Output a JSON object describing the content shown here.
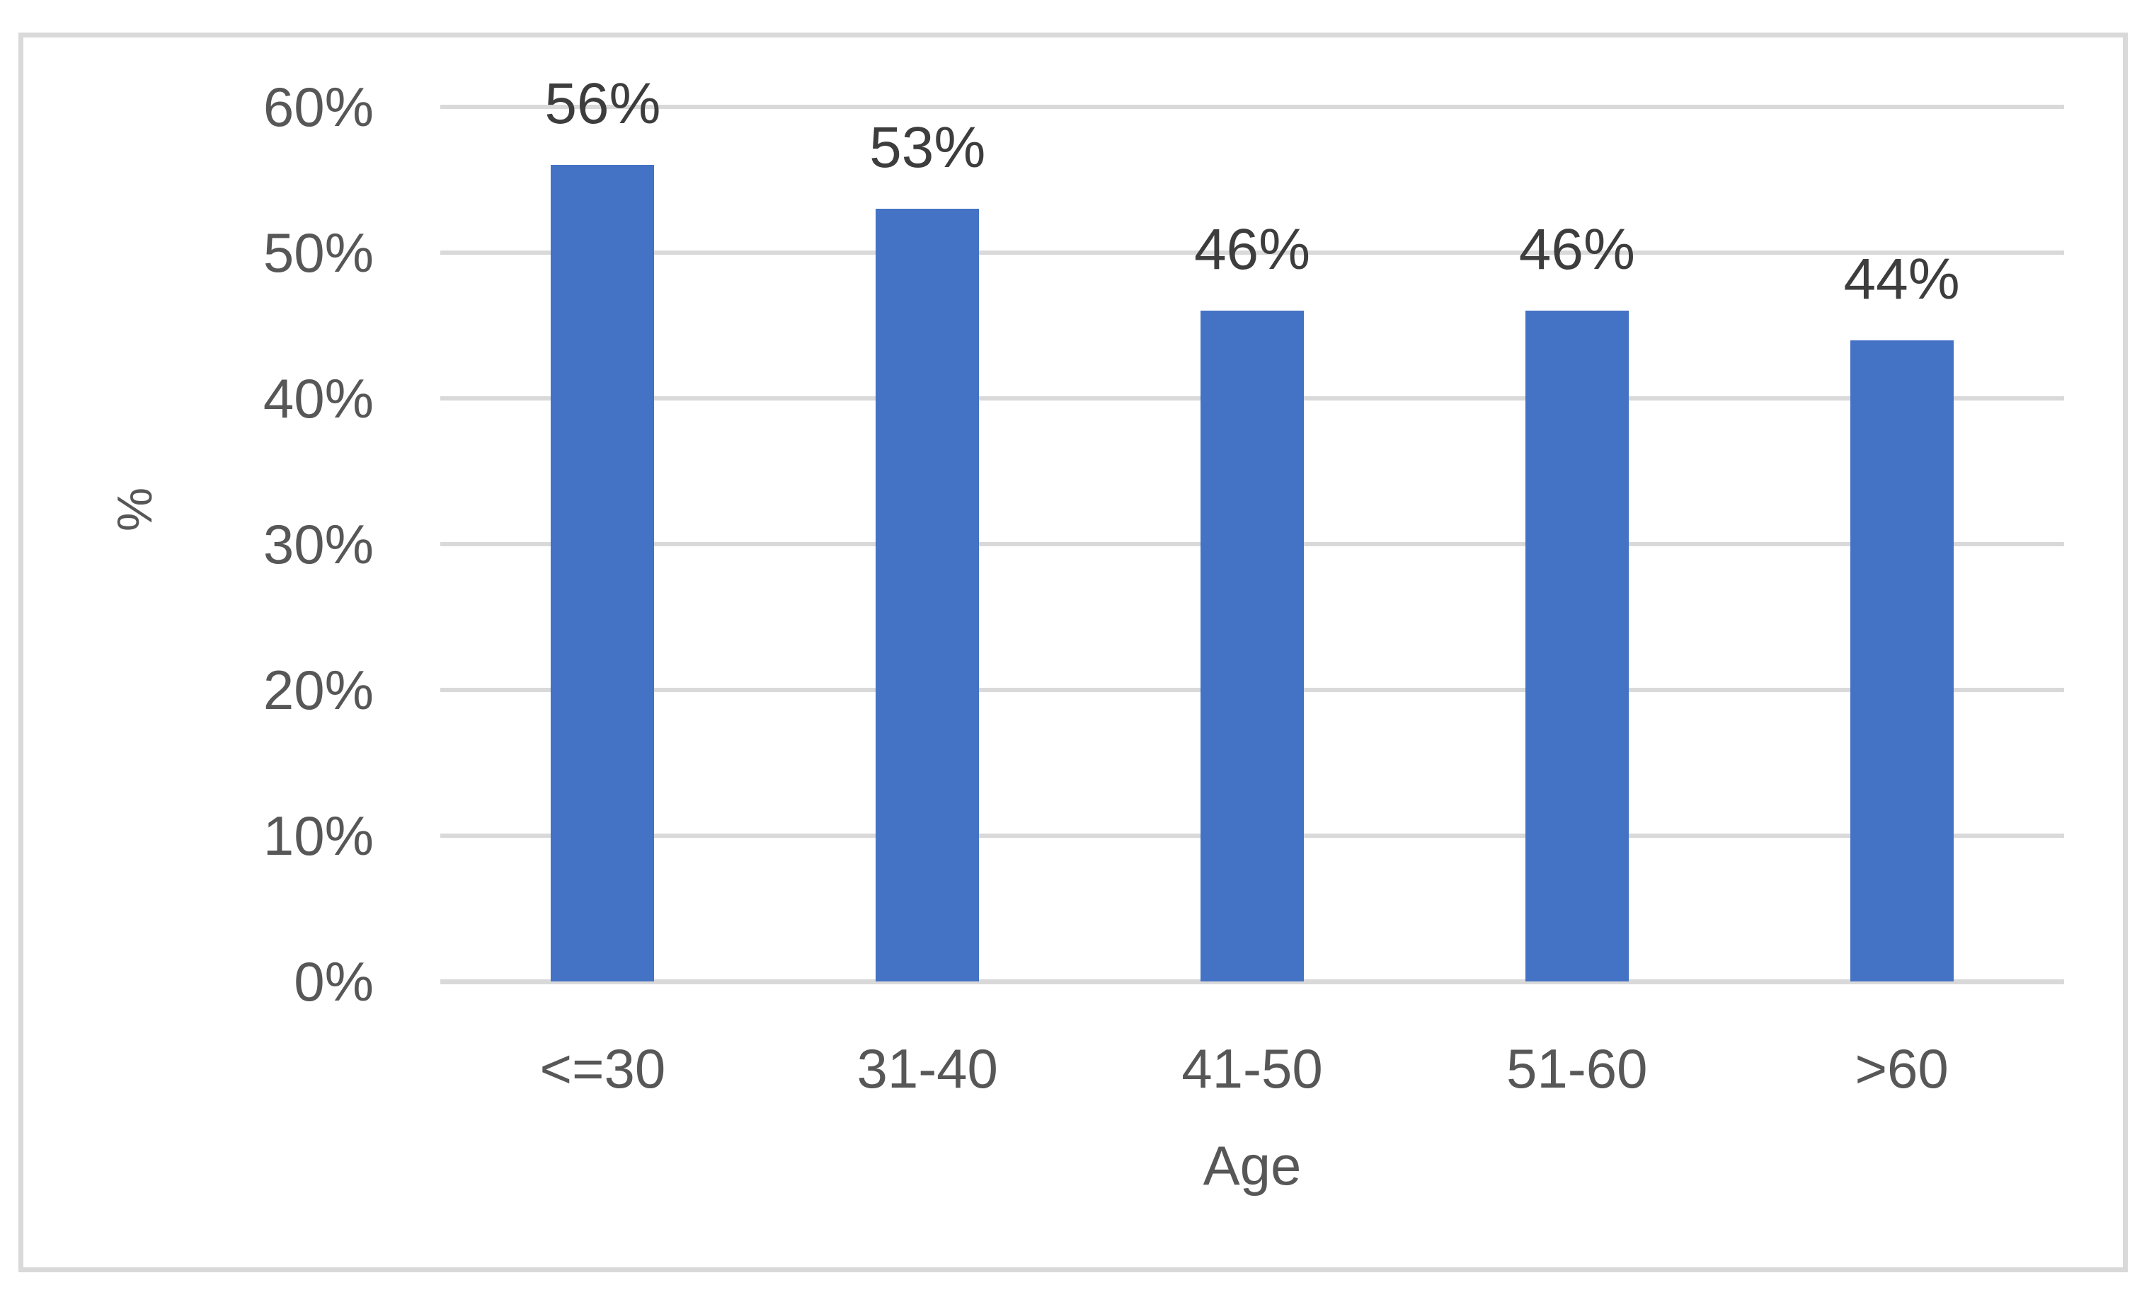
{
  "chart_data": {
    "type": "bar",
    "categories": [
      "<=30",
      "31-40",
      "41-50",
      "51-60",
      ">60"
    ],
    "values": [
      56,
      53,
      46,
      46,
      44
    ],
    "data_labels": [
      "56%",
      "53%",
      "46%",
      "46%",
      "44%"
    ],
    "title": "",
    "xlabel": "Age",
    "ylabel": "%",
    "ylim": [
      0,
      60
    ],
    "ytick_step": 10,
    "ytick_labels": [
      "0%",
      "10%",
      "20%",
      "30%",
      "40%",
      "50%",
      "60%"
    ],
    "grid": true,
    "legend": false,
    "colors": {
      "bar": "#4472C4",
      "gridline": "#D9D9D9",
      "axis_line": "#D9D9D9",
      "frame_border": "#D9D9D9",
      "axis_text": "#575757",
      "data_label_text": "#3D3D3D",
      "background": "#FFFFFF"
    }
  }
}
